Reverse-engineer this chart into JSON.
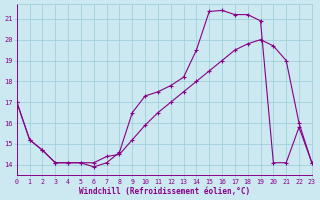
{
  "xlabel": "Windchill (Refroidissement éolien,°C)",
  "bg_color": "#cce8f0",
  "grid_color": "#99ccd8",
  "line_color": "#880088",
  "xlim": [
    0,
    23
  ],
  "ylim": [
    13.5,
    21.7
  ],
  "xticks": [
    0,
    1,
    2,
    3,
    4,
    5,
    6,
    7,
    8,
    9,
    10,
    11,
    12,
    13,
    14,
    15,
    16,
    17,
    18,
    19,
    20,
    21,
    22,
    23
  ],
  "yticks": [
    14,
    15,
    16,
    17,
    18,
    19,
    20,
    21
  ],
  "line1_x": [
    0,
    1,
    2,
    3,
    4,
    5,
    6,
    7,
    8,
    9,
    10,
    11,
    12,
    13,
    14,
    15,
    16,
    17,
    18,
    19,
    20,
    21,
    22,
    23
  ],
  "line1_y": [
    17,
    15.2,
    14.7,
    14.1,
    14.1,
    14.1,
    14.1,
    14.4,
    14.5,
    15.2,
    15.9,
    16.5,
    17.0,
    17.5,
    18.0,
    18.5,
    19.0,
    19.5,
    19.8,
    20.0,
    19.7,
    19.0,
    16.0,
    14.1
  ],
  "line2_x": [
    0,
    1,
    2,
    3,
    4,
    5,
    6,
    7,
    8,
    9,
    10,
    11,
    12,
    13,
    14,
    15,
    16,
    17,
    18,
    19,
    20,
    21,
    22,
    23
  ],
  "line2_y": [
    17,
    15.2,
    14.7,
    14.1,
    14.1,
    14.1,
    13.9,
    14.1,
    14.6,
    16.5,
    17.3,
    17.5,
    17.8,
    18.2,
    19.5,
    21.35,
    21.4,
    21.2,
    21.2,
    20.9,
    14.1,
    14.1,
    15.8,
    14.1
  ]
}
